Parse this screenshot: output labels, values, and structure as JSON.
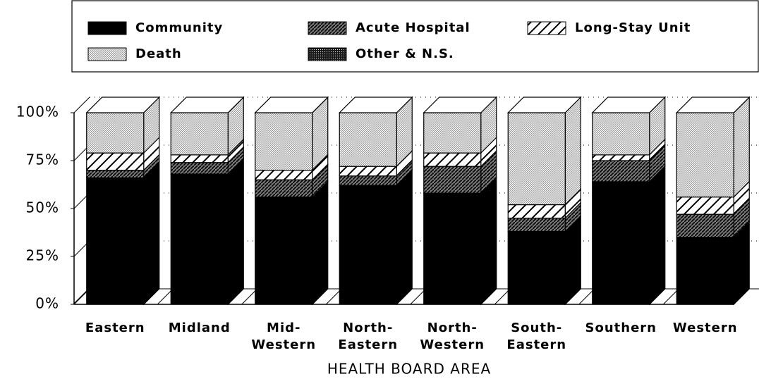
{
  "chart_data": {
    "type": "bar",
    "stacked": true,
    "x_label": "HEALTH BOARD AREA",
    "categories": [
      "Eastern",
      "Midland",
      "Mid-\nWestern",
      "North-\nEastern",
      "North-\nWestern",
      "South-\nEastern",
      "Southern",
      "Western"
    ],
    "series": [
      {
        "name": "Community",
        "color": "#000000",
        "values": [
          66,
          68,
          56,
          62,
          58,
          38,
          64,
          35
        ]
      },
      {
        "name": "Acute Hospital",
        "color": "#777777",
        "values": [
          4,
          6,
          9,
          5,
          14,
          7,
          11,
          12
        ]
      },
      {
        "name": "Long-Stay Unit",
        "color": "#ffffff",
        "values": [
          9,
          4,
          5,
          5,
          7,
          7,
          3,
          9
        ]
      },
      {
        "name": "Death",
        "color": "#9a9a9a",
        "values": [
          21,
          22,
          30,
          28,
          21,
          48,
          22,
          44
        ]
      },
      {
        "name": "Other & N.S.",
        "color": "#1a1a1a",
        "values": [
          0,
          0,
          0,
          0,
          0,
          0,
          0,
          0
        ]
      }
    ],
    "ylim": [
      0,
      100
    ],
    "yticks": [
      {
        "value": 0,
        "label": "0%"
      },
      {
        "value": 25,
        "label": "25%"
      },
      {
        "value": 50,
        "label": "50%"
      },
      {
        "value": 75,
        "label": "75%"
      },
      {
        "value": 100,
        "label": "100%"
      }
    ],
    "grid": true
  }
}
